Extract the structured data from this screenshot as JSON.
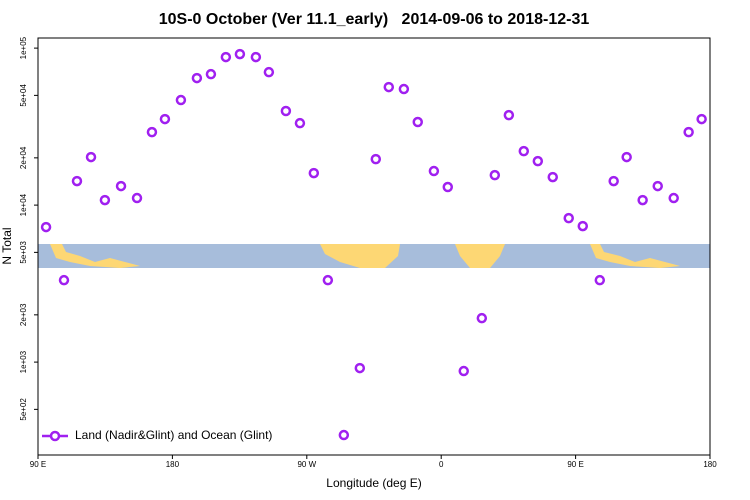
{
  "chart_data": {
    "type": "scatter",
    "title": "10S-0 October (Ver 11.1_early)   2014-09-06 to 2018-12-31",
    "xlabel": "Longitude (deg E)",
    "ylabel": "N Total",
    "x": [
      95.4,
      107.4,
      116.1,
      125.5,
      134.8,
      145.6,
      156.3,
      166.3,
      175.0,
      185.7,
      196.4,
      205.8,
      215.8,
      225.2,
      235.9,
      244.6,
      256.0,
      265.4,
      274.7,
      284.1,
      294.8,
      305.5,
      316.2,
      324.9,
      335.0,
      344.3,
      355.1,
      364.4,
      375.1,
      387.2,
      395.9,
      405.3,
      415.3,
      424.7,
      434.7,
      445.4,
      454.8,
      466.2,
      475.5,
      484.2,
      494.9,
      505.0,
      515.7,
      525.7,
      534.4
    ],
    "series": [
      {
        "name": "Land (Nadir&Glint) and Ocean (Glint)",
        "color": "#a020f0",
        "values": [
          7244,
          3326,
          14220,
          20230,
          10760,
          13220,
          11090,
          29170,
          35320,
          46680,
          64430,
          68230,
          87680,
          91580,
          87680,
          70260,
          39760,
          33270,
          15990,
          3326,
          343,
          916,
          19630,
          56470,
          54860,
          33830,
          16480,
          13040,
          877,
          1905,
          15520,
          37420,
          22070,
          19060,
          15080,
          8260,
          7350,
          3326,
          14220,
          20230,
          10760,
          13220,
          11090,
          29170,
          35320
        ]
      }
    ],
    "xlim": [
      90,
      540
    ],
    "xticks": [
      {
        "value": 90,
        "label": "90 E"
      },
      180,
      {
        "value": 270,
        "label": "90 W"
      },
      {
        "value": 360,
        "label": "0"
      },
      {
        "value": 450,
        "label": "90 E"
      },
      {
        "value": 540,
        "label": "180"
      }
    ],
    "ylim": [
      256,
      116000
    ],
    "log_y": true,
    "yticks": [
      {
        "value": 500,
        "label": "5e+02"
      },
      {
        "value": 1000,
        "label": "1e+03"
      },
      {
        "value": 2000,
        "label": "2e+03"
      },
      {
        "value": 5000,
        "label": "5e+03"
      },
      {
        "value": 10000,
        "label": "1e+04"
      },
      {
        "value": 20000,
        "label": "2e+04"
      },
      {
        "value": 50000,
        "label": "5e+04"
      },
      {
        "value": 100000,
        "label": "1e+05"
      }
    ],
    "legend": "bottom-left"
  }
}
